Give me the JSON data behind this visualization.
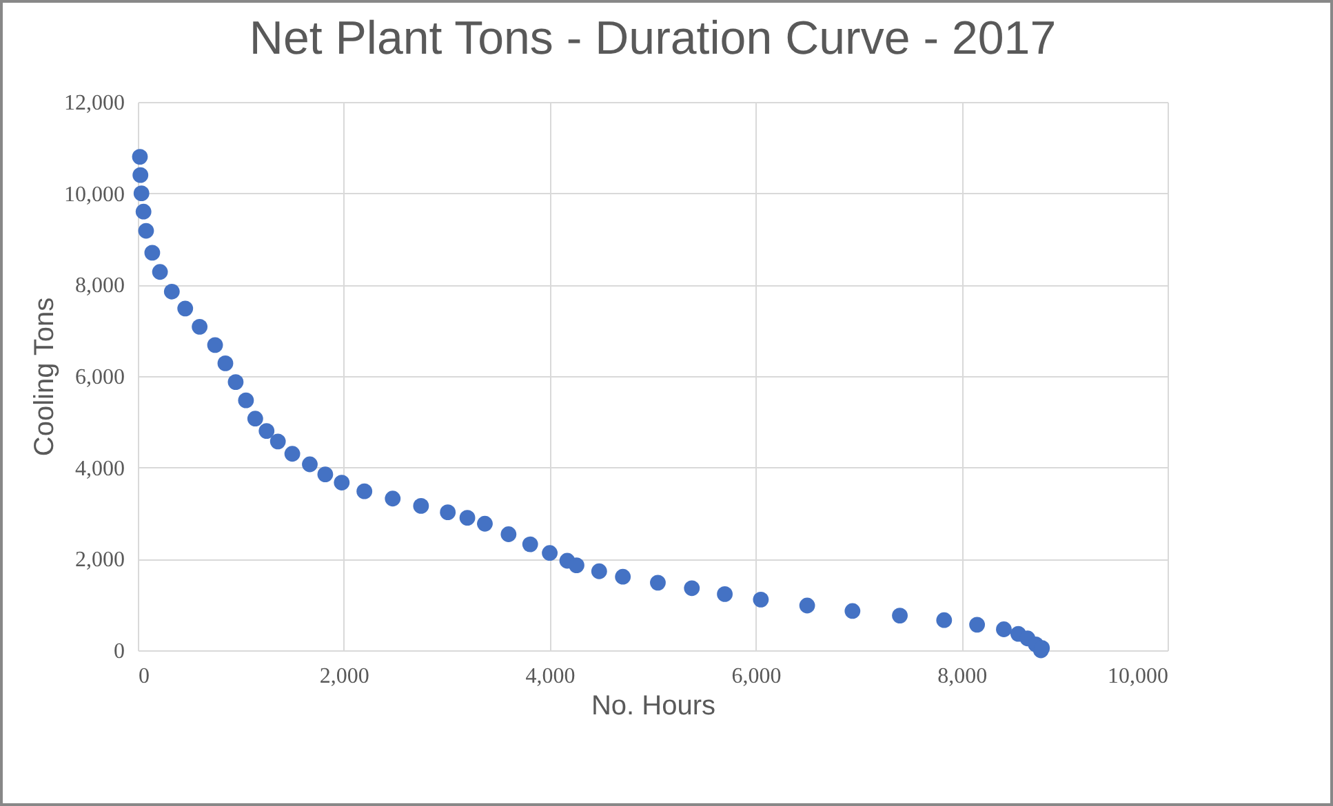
{
  "chart_data": {
    "type": "scatter",
    "title": "Net Plant Tons - Duration Curve - 2017",
    "xlabel": "No. Hours",
    "ylabel": "Cooling Tons",
    "x": [
      20,
      25,
      35,
      55,
      80,
      140,
      215,
      330,
      460,
      600,
      750,
      850,
      950,
      1050,
      1140,
      1250,
      1360,
      1500,
      1670,
      1820,
      1980,
      2200,
      2475,
      2750,
      3010,
      3200,
      3370,
      3600,
      3810,
      4000,
      4170,
      4260,
      4480,
      4710,
      5050,
      5380,
      5700,
      6050,
      6500,
      6940,
      7400,
      7830,
      8150,
      8410,
      8550,
      8640,
      8720,
      8770,
      8780
    ],
    "series": [
      {
        "color": "#4472c4",
        "values": [
          10800,
          10400,
          10000,
          9600,
          9180,
          8700,
          8280,
          7850,
          7480,
          7080,
          6680,
          6280,
          5870,
          5470,
          5070,
          4800,
          4570,
          4300,
          4070,
          3850,
          3670,
          3480,
          3320,
          3160,
          3020,
          2900,
          2770,
          2540,
          2320,
          2130,
          1960,
          1860,
          1730,
          1610,
          1480,
          1360,
          1230,
          1110,
          980,
          860,
          760,
          660,
          560,
          460,
          360,
          260,
          130,
          0,
          50
        ]
      }
    ],
    "xlim": [
      0,
      10000
    ],
    "ylim": [
      0,
      12000
    ],
    "xticks": [
      0,
      {
        "value": 2000,
        "label": "2,000"
      },
      {
        "value": 4000,
        "label": "4,000"
      },
      {
        "value": 6000,
        "label": "6,000"
      },
      {
        "value": 8000,
        "label": "8,000"
      },
      {
        "value": 10000,
        "label": "10,000"
      }
    ],
    "yticks": [
      0,
      {
        "value": 2000,
        "label": "2,000"
      },
      {
        "value": 4000,
        "label": "4,000"
      },
      {
        "value": 6000,
        "label": "6,000"
      },
      {
        "value": 8000,
        "label": "8,000"
      },
      {
        "value": 10000,
        "label": "10,000"
      },
      {
        "value": 12000,
        "label": "12,000"
      }
    ],
    "grid": true,
    "marker": "circle"
  }
}
